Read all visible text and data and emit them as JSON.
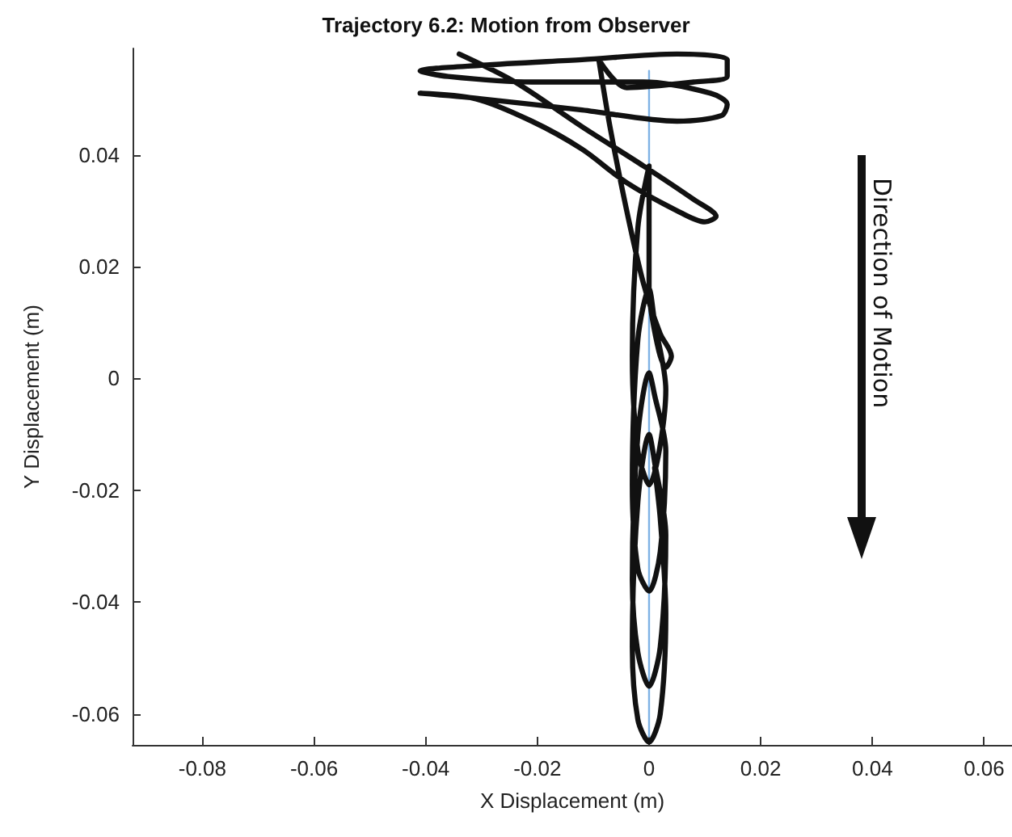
{
  "chart_data": {
    "type": "line",
    "title": "Trajectory 6.2: Motion from Observer",
    "xlabel": "X Displacement (m)",
    "ylabel": "Y Displacement (m)",
    "annotations": [
      "Direction of Motion"
    ],
    "xlim": [
      -0.0925,
      0.065
    ],
    "ylim": [
      -0.0655,
      0.059
    ],
    "xticks": [
      -0.08,
      -0.06,
      -0.04,
      -0.02,
      0,
      0.02,
      0.04,
      0.06
    ],
    "yticks": [
      -0.06,
      -0.04,
      -0.02,
      0,
      0.02,
      0.04
    ],
    "grid": false,
    "marker": "none",
    "line_style": "solid",
    "series": [
      {
        "color": "#7fb2e5",
        "x": [
          0,
          0
        ],
        "values": [
          0.055,
          -0.064
        ]
      },
      {
        "color": "#111111",
        "x": [
          -0.034,
          -0.024,
          -0.012,
          -0.001,
          0.008,
          0.012,
          0.01,
          0.005,
          -0.004,
          -0.012,
          -0.021,
          -0.031,
          -0.041,
          -0.03,
          -0.012,
          0.005,
          0.013,
          0.014,
          0.011,
          -0.001,
          -0.021,
          -0.036,
          -0.041,
          -0.03,
          -0.012,
          0.005,
          0.014,
          0.014,
          0.008,
          -0.004,
          -0.009,
          -0.007,
          -0.004,
          -0.001,
          0.002,
          0.004,
          0.003,
          0.0015,
          0,
          0,
          0,
          -0.002,
          -0.003,
          -0.002,
          0,
          0.003,
          0.001,
          0,
          -0.002,
          -0.003,
          -0.002,
          0,
          0.002,
          0.003,
          0.001,
          0,
          -0.002,
          -0.003,
          -0.002,
          0,
          0.002,
          0.003,
          0.001,
          0,
          -0.002,
          -0.003,
          -0.002,
          0,
          0.002,
          0.003,
          0.002,
          0.001
        ],
        "values": [
          0.058,
          0.053,
          0.045,
          0.038,
          0.032,
          0.029,
          0.028,
          0.03,
          0.035,
          0.041,
          0.046,
          0.05,
          0.051,
          0.05,
          0.048,
          0.046,
          0.047,
          0.049,
          0.051,
          0.053,
          0.053,
          0.054,
          0.055,
          0.056,
          0.057,
          0.058,
          0.057,
          0.054,
          0.053,
          0.052,
          0.057,
          0.045,
          0.03,
          0.017,
          0.008,
          0.004,
          0.002,
          0.006,
          0.016,
          0.027,
          0.038,
          0.027,
          0.004,
          -0.013,
          -0.019,
          -0.002,
          0.01,
          0.016,
          0.007,
          -0.019,
          -0.034,
          -0.038,
          -0.031,
          -0.013,
          -0.003,
          0.001,
          -0.01,
          -0.036,
          -0.049,
          -0.055,
          -0.048,
          -0.028,
          -0.015,
          -0.01,
          -0.022,
          -0.048,
          -0.061,
          -0.065,
          -0.06,
          -0.042,
          -0.025,
          -0.016
        ]
      }
    ]
  }
}
